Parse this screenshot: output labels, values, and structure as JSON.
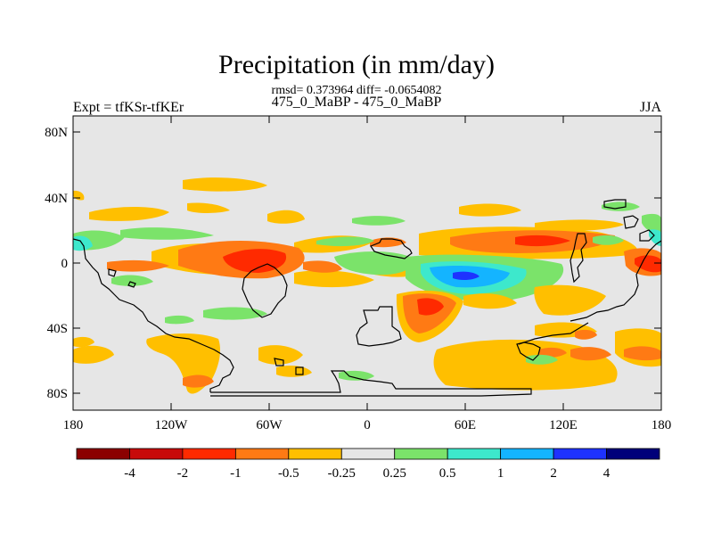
{
  "title": "Precipitation (in mm/day)",
  "stats": "rmsd= 0.373964 diff= -0.0654082",
  "subtitle": "475_0_MaBP - 475_0_MaBP",
  "experiment": "Expt = tfKSr-tfKEr",
  "season": "JJA",
  "axes": {
    "lat_labels": [
      "80N",
      "40N",
      "0",
      "40S",
      "80S"
    ],
    "lon_labels": [
      "180",
      "120W",
      "60W",
      "0",
      "60E",
      "120E",
      "180"
    ]
  },
  "colorbar": {
    "labels": [
      "-4",
      "-2",
      "-1",
      "-0.5",
      "-0.25",
      "0.25",
      "0.5",
      "1",
      "2",
      "4"
    ],
    "colors": [
      "#8b0000",
      "#c80a0a",
      "#ff2a00",
      "#ff7a14",
      "#ffbf00",
      "#e6e6e6",
      "#7be36a",
      "#3de8cc",
      "#14b4ff",
      "#1e32ff",
      "#00007a"
    ]
  },
  "colors": {
    "background": "#e6e6e6",
    "outline": "#000000"
  }
}
